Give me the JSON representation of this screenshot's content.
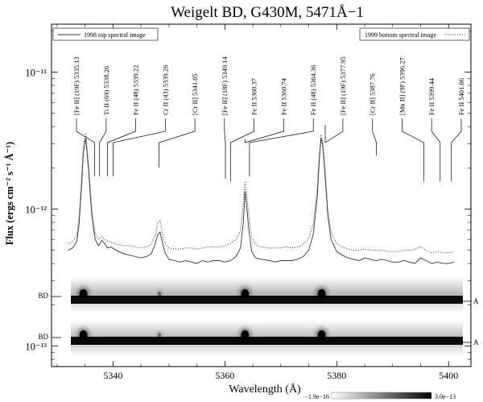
{
  "chart_data": {
    "type": "line",
    "title": "Weigelt BD, G430M, 5471Å−1",
    "xlabel": "Wavelength (Å)",
    "ylabel": "Flux (ergs cm⁻² s⁻¹ Å⁻¹)",
    "xlim": [
      5329,
      5404
    ],
    "ylim_log10": [
      -13.15,
      -10.65
    ],
    "y_scale": "log",
    "grid": false,
    "x_ticks": [
      {
        "value": 5340,
        "label": "5340"
      },
      {
        "value": 5360,
        "label": "5360"
      },
      {
        "value": 5380,
        "label": "5380"
      },
      {
        "value": 5400,
        "label": "5400"
      }
    ],
    "y_ticks": [
      {
        "value": -11,
        "label": "10⁻¹¹"
      },
      {
        "value": -12,
        "label": "10⁻¹²"
      },
      {
        "value": -13,
        "label": "10⁻¹³"
      }
    ],
    "series": [
      {
        "name": "1998 top spectral image",
        "style": "solid",
        "color": "#333333",
        "x": [
          5332.0,
          5332.8,
          5333.5,
          5333.9,
          5334.3,
          5334.7,
          5335.1,
          5335.6,
          5336.2,
          5336.8,
          5337.4,
          5338.0,
          5338.5,
          5339.0,
          5339.6,
          5340.2,
          5341.0,
          5342.0,
          5343.0,
          5344.0,
          5345.0,
          5346.0,
          5346.8,
          5347.5,
          5348.0,
          5348.4,
          5348.8,
          5349.3,
          5350.0,
          5351.0,
          5352.0,
          5353.0,
          5354.0,
          5355.0,
          5356.0,
          5357.0,
          5358.0,
          5359.0,
          5360.0,
          5361.0,
          5362.0,
          5362.8,
          5363.3,
          5363.6,
          5363.9,
          5364.3,
          5364.8,
          5365.5,
          5366.5,
          5368.0,
          5369.0,
          5370.0,
          5371.0,
          5372.0,
          5373.0,
          5374.0,
          5375.0,
          5375.8,
          5376.5,
          5376.9,
          5377.2,
          5377.5,
          5377.9,
          5378.4,
          5379.0,
          5380.0,
          5381.0,
          5382.0,
          5383.0,
          5384.0,
          5385.0,
          5386.0,
          5387.0,
          5388.0,
          5389.0,
          5390.0,
          5391.0,
          5392.0,
          5393.0,
          5394.0,
          5395.0,
          5396.0,
          5397.0,
          5398.0,
          5399.0,
          5400.0,
          5401.0
        ],
        "y": [
          5e-13,
          5.2e-13,
          5.8e-13,
          7.5e-13,
          1.3e-12,
          2.6e-12,
          3.3e-12,
          2e-12,
          9e-13,
          6e-13,
          5.4e-13,
          5.9e-13,
          5.6e-13,
          5.2e-13,
          5.3e-13,
          5.1e-13,
          4.9e-13,
          4.7e-13,
          4.6e-13,
          4.5e-13,
          4.4e-13,
          4.5e-13,
          4.7e-13,
          5.5e-13,
          6.5e-13,
          6.8e-13,
          5.8e-13,
          4.8e-13,
          4.3e-13,
          4.2e-13,
          4.1e-13,
          4.2e-13,
          4.1e-13,
          4e-13,
          4.2e-13,
          4.1e-13,
          4.2e-13,
          4.2e-13,
          4.1e-13,
          4.2e-13,
          4.5e-13,
          5.2e-13,
          8e-13,
          1.35e-12,
          1.05e-12,
          7e-13,
          4.9e-13,
          4.4e-13,
          4.3e-13,
          4.2e-13,
          4.1e-13,
          4.2e-13,
          4.2e-13,
          4.2e-13,
          4.3e-13,
          4.5e-13,
          5e-13,
          6.5e-13,
          1.2e-12,
          2.3e-12,
          3.3e-12,
          2.9e-12,
          1.8e-12,
          9e-13,
          6e-13,
          4.9e-13,
          4.6e-13,
          4.4e-13,
          4.3e-13,
          4.2e-13,
          4.4e-13,
          4.3e-13,
          4.2e-13,
          4.3e-13,
          4.2e-13,
          4.1e-13,
          4.1e-13,
          4.2e-13,
          4.1e-13,
          4e-13,
          4.4e-13,
          4.2e-13,
          4e-13,
          4.1e-13,
          4e-13,
          4e-13,
          4.1e-13
        ]
      },
      {
        "name": "1999 bottom spectral image",
        "style": "dotted",
        "color": "#333333",
        "x": [
          5332.0,
          5332.8,
          5333.5,
          5333.9,
          5334.3,
          5334.7,
          5335.1,
          5335.6,
          5336.2,
          5336.8,
          5337.4,
          5338.0,
          5338.5,
          5339.0,
          5339.6,
          5340.2,
          5341.0,
          5342.0,
          5343.0,
          5344.0,
          5345.0,
          5346.0,
          5346.8,
          5347.5,
          5348.0,
          5348.4,
          5348.8,
          5349.3,
          5350.0,
          5351.0,
          5352.0,
          5353.0,
          5354.0,
          5355.0,
          5356.0,
          5357.0,
          5358.0,
          5359.0,
          5360.0,
          5361.0,
          5362.0,
          5362.8,
          5363.3,
          5363.6,
          5363.9,
          5364.3,
          5364.8,
          5365.5,
          5366.5,
          5368.0,
          5369.0,
          5370.0,
          5371.0,
          5372.0,
          5373.0,
          5374.0,
          5375.0,
          5375.8,
          5376.5,
          5376.9,
          5377.2,
          5377.5,
          5377.9,
          5378.4,
          5379.0,
          5380.0,
          5381.0,
          5382.0,
          5383.0,
          5384.0,
          5385.0,
          5386.0,
          5387.0,
          5388.0,
          5389.0,
          5390.0,
          5391.0,
          5392.0,
          5393.0,
          5394.0,
          5395.0,
          5396.0,
          5397.0,
          5398.0,
          5399.0,
          5400.0,
          5401.0
        ],
        "y": [
          5.6e-13,
          5.8e-13,
          6.4e-13,
          8.5e-13,
          1.5e-12,
          2.9e-12,
          3.6e-12,
          2.2e-12,
          1e-12,
          6.6e-13,
          6e-13,
          6.3e-13,
          6e-13,
          5.8e-13,
          5.8e-13,
          5.6e-13,
          5.5e-13,
          5.4e-13,
          5.4e-13,
          5.3e-13,
          5.2e-13,
          5.3e-13,
          5.5e-13,
          6.4e-13,
          7.8e-13,
          8.3e-13,
          6.8e-13,
          5.6e-13,
          5.2e-13,
          5.1e-13,
          5.1e-13,
          5.2e-13,
          5.2e-13,
          5.1e-13,
          5.2e-13,
          5.3e-13,
          5.3e-13,
          5.3e-13,
          5.4e-13,
          5.6e-13,
          6e-13,
          7e-13,
          1.1e-12,
          1.6e-12,
          1.3e-12,
          9e-13,
          6.2e-13,
          5.5e-13,
          5.3e-13,
          5.2e-13,
          5.2e-13,
          5.2e-13,
          5.3e-13,
          5.2e-13,
          5.3e-13,
          5.5e-13,
          6.1e-13,
          7.8e-13,
          1.4e-12,
          2.5e-12,
          3.5e-12,
          3.1e-12,
          2e-12,
          1e-12,
          6.8e-13,
          5.6e-13,
          5.3e-13,
          5.1e-13,
          5e-13,
          5e-13,
          5.1e-13,
          5e-13,
          5e-13,
          5e-13,
          4.9e-13,
          4.9e-13,
          4.9e-13,
          5e-13,
          5e-13,
          5.1e-13,
          5.3e-13,
          5e-13,
          4.8e-13,
          4.9e-13,
          4.8e-13,
          4.8e-13,
          4.9e-13
        ]
      }
    ],
    "legends": [
      {
        "text": "1998 top spectral image",
        "style": "solid",
        "position": "top-left"
      },
      {
        "text": "1999 bottom spectral image",
        "style": "dotted",
        "position": "top-right"
      }
    ],
    "line_ids": [
      {
        "label": "[Fe II]  (19F) 5335.13",
        "wavelength": 5335.13,
        "tip": 5336.7
      },
      {
        "label": "Ti II  (69) 5338.26",
        "wavelength": 5338.26,
        "tip": 5337.6
      },
      {
        "label": "Fe II  (48) 5339.22",
        "wavelength": 5339.22,
        "tip": 5339.0
      },
      {
        "label": "Cr II  (43) 5339.26",
        "wavelength": 5339.26,
        "tip": 5340.0
      },
      {
        "label": "[Cr II] 5341.05",
        "wavelength": 5341.05,
        "tip": 5348.2
      },
      {
        "label": "[Fe II]  (18F) 5349.14",
        "wavelength": 5349.14,
        "tip": 5360.1
      },
      {
        "label": "Fe II 5360.37",
        "wavelength": 5360.37,
        "tip": 5361.0
      },
      {
        "label": "Fe II 5360.74",
        "wavelength": 5360.74,
        "tip": 5363.6
      },
      {
        "label": "Fe II  (48) 5364.36",
        "wavelength": 5364.36,
        "tip": 5364.4
      },
      {
        "label": "[Fe II]  (19F) 5377.95",
        "wavelength": 5377.95,
        "tip": 5377.95
      },
      {
        "label": "[Cr II] 5387.76",
        "wavelength": 5387.76,
        "tip": 5387.1
      },
      {
        "label": "[Mn II]  (9F) 5396.27",
        "wavelength": 5396.27,
        "tip": 5395.6
      },
      {
        "label": "Fe II 5399.44",
        "wavelength": 5399.44,
        "tip": 5398.5
      },
      {
        "label": "Fe II 5401.06",
        "wavelength": 5401.06,
        "tip": 5400.5
      }
    ],
    "spectral_images": [
      {
        "left_label": "BD",
        "right_label": "A",
        "row": "top"
      },
      {
        "left_label": "BD",
        "right_label": "A",
        "row": "bottom"
      }
    ],
    "emission_knots_wavelengths": [
      5334.7,
      5348.3,
      5363.6,
      5377.3
    ],
    "colorbar": {
      "min_label": "−1.9e−16",
      "max_label": "3.0e−13",
      "colors": [
        "#ffffff",
        "#000000"
      ]
    }
  }
}
